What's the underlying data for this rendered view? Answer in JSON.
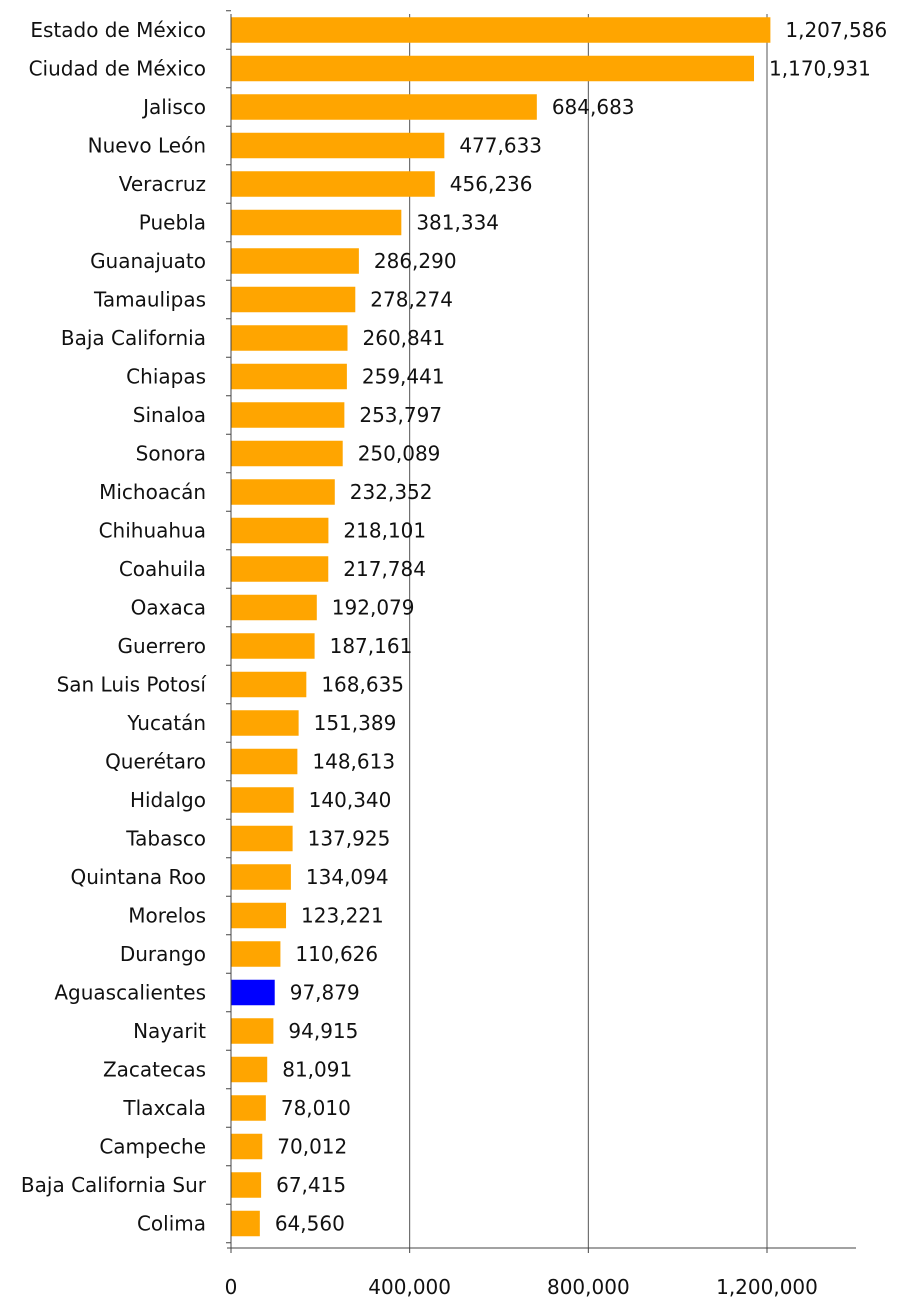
{
  "chart_data": {
    "type": "bar",
    "orientation": "horizontal",
    "categories": [
      "Estado de México",
      "Ciudad de México",
      "Jalisco",
      "Nuevo León",
      "Veracruz",
      "Puebla",
      "Guanajuato",
      "Tamaulipas",
      "Baja California",
      "Chiapas",
      "Sinaloa",
      "Sonora",
      "Michoacán",
      "Chihuahua",
      "Coahuila",
      "Oaxaca",
      "Guerrero",
      "San Luis Potosí",
      "Yucatán",
      "Querétaro",
      "Hidalgo",
      "Tabasco",
      "Quintana Roo",
      "Morelos",
      "Durango",
      "Aguascalientes",
      "Nayarit",
      "Zacatecas",
      "Tlaxcala",
      "Campeche",
      "Baja California Sur",
      "Colima"
    ],
    "values": [
      1207586,
      1170931,
      684683,
      477633,
      456236,
      381334,
      286290,
      278274,
      260841,
      259441,
      253797,
      250089,
      232352,
      218101,
      217784,
      192079,
      187161,
      168635,
      151389,
      148613,
      140340,
      137925,
      134094,
      123221,
      110626,
      97879,
      94915,
      81091,
      78010,
      70012,
      67415,
      64560
    ],
    "value_labels": [
      "1,207,586",
      "1,170,931",
      "684,683",
      "477,633",
      "456,236",
      "381,334",
      "286,290",
      "278,274",
      "260,841",
      "259,441",
      "253,797",
      "250,089",
      "232,352",
      "218,101",
      "217,784",
      "192,079",
      "187,161",
      "168,635",
      "151,389",
      "148,613",
      "140,340",
      "137,925",
      "134,094",
      "123,221",
      "110,626",
      "97,879",
      "94,915",
      "81,091",
      "78,010",
      "70,012",
      "67,415",
      "64,560"
    ],
    "highlight_category": "Aguascalientes",
    "xlim": [
      0,
      1400000
    ],
    "xticks": [
      0,
      400000,
      800000,
      1200000
    ],
    "xtick_labels": [
      "0",
      "400,000",
      "800,000",
      "1,200,000"
    ],
    "grid": "vertical",
    "title": "",
    "xlabel": "",
    "ylabel": "",
    "colors": {
      "bar": "#FFA500",
      "highlight": "#0000FF",
      "grid": "#555555",
      "axis": "#444444"
    }
  }
}
